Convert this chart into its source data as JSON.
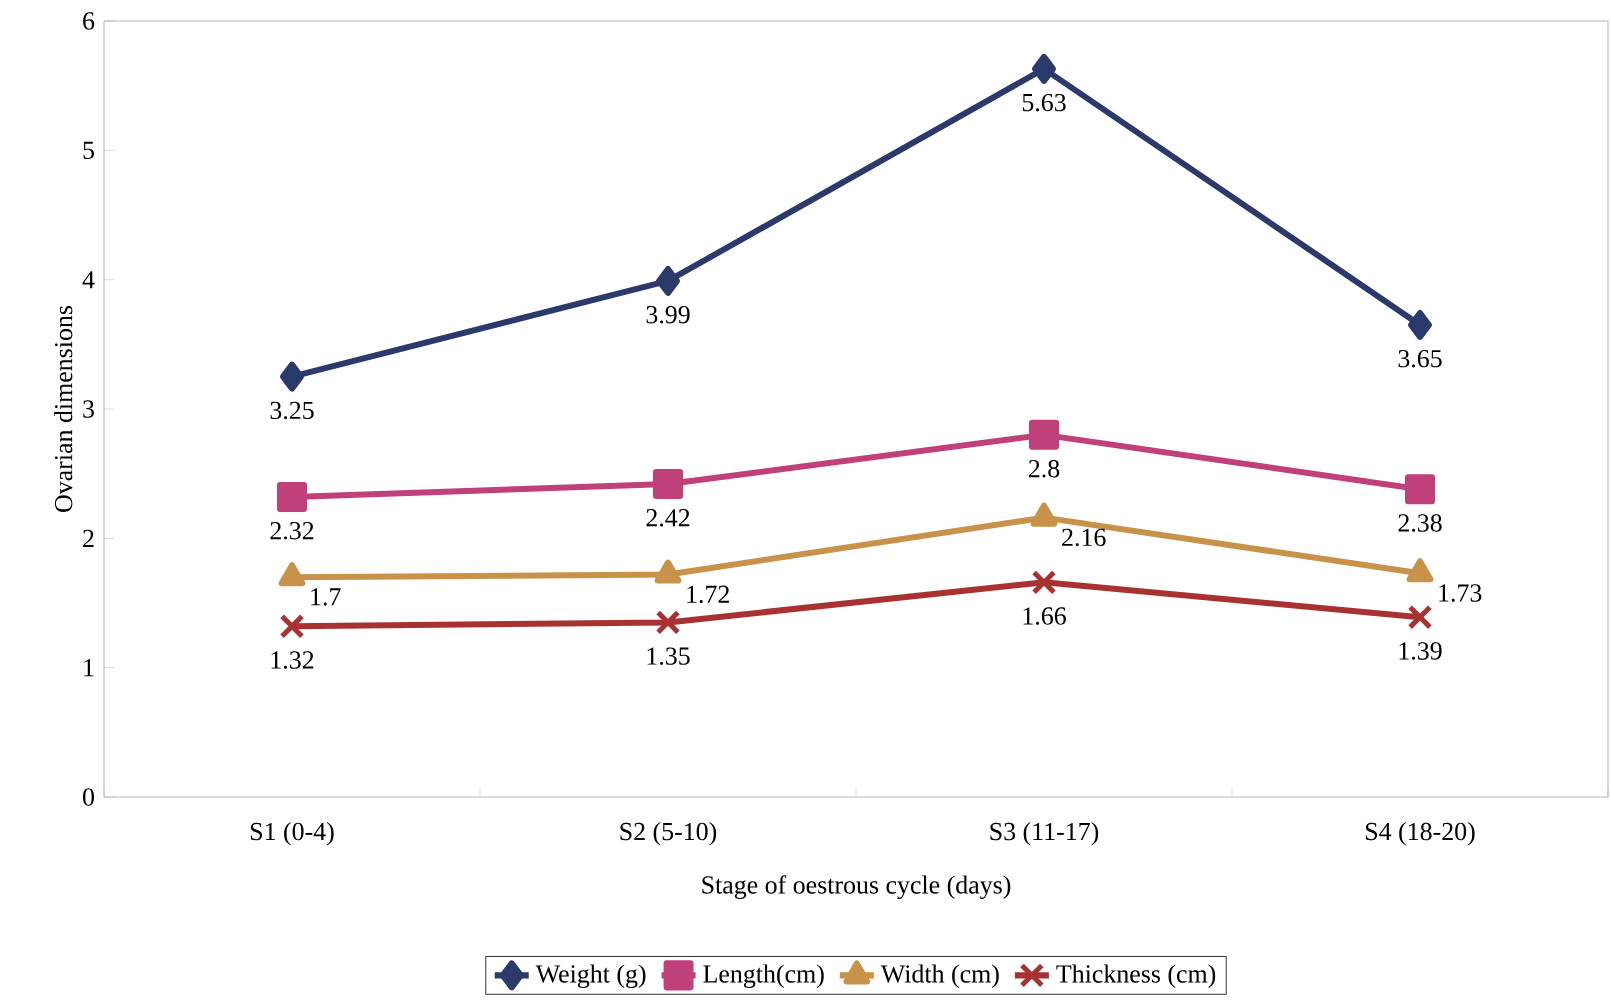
{
  "chart_data": {
    "type": "line",
    "xlabel": "Stage of oestrous cycle (days)",
    "ylabel": "Ovarian dimensions",
    "categories": [
      "S1 (0-4)",
      "S2 (5-10)",
      "S3 (11-17)",
      "S4 (18-20)"
    ],
    "ylim": [
      0,
      6
    ],
    "yticks": [
      0,
      1,
      2,
      3,
      4,
      5,
      6
    ],
    "grid": false,
    "legend": "bottom",
    "data_labels": true,
    "series": [
      {
        "name": "Weight (g)",
        "color": "#2b3a6b",
        "marker": "diamond",
        "values": [
          3.25,
          3.99,
          5.63,
          3.65
        ]
      },
      {
        "name": "Length(cm)",
        "color": "#c0407a",
        "marker": "square",
        "values": [
          2.32,
          2.42,
          2.8,
          2.38
        ]
      },
      {
        "name": "Width (cm)",
        "color": "#c8924a",
        "marker": "triangle",
        "values": [
          1.7,
          1.72,
          2.16,
          1.73
        ]
      },
      {
        "name": "Thickness  (cm)",
        "color": "#a83232",
        "marker": "cross",
        "values": [
          1.32,
          1.35,
          1.66,
          1.39
        ]
      }
    ]
  }
}
